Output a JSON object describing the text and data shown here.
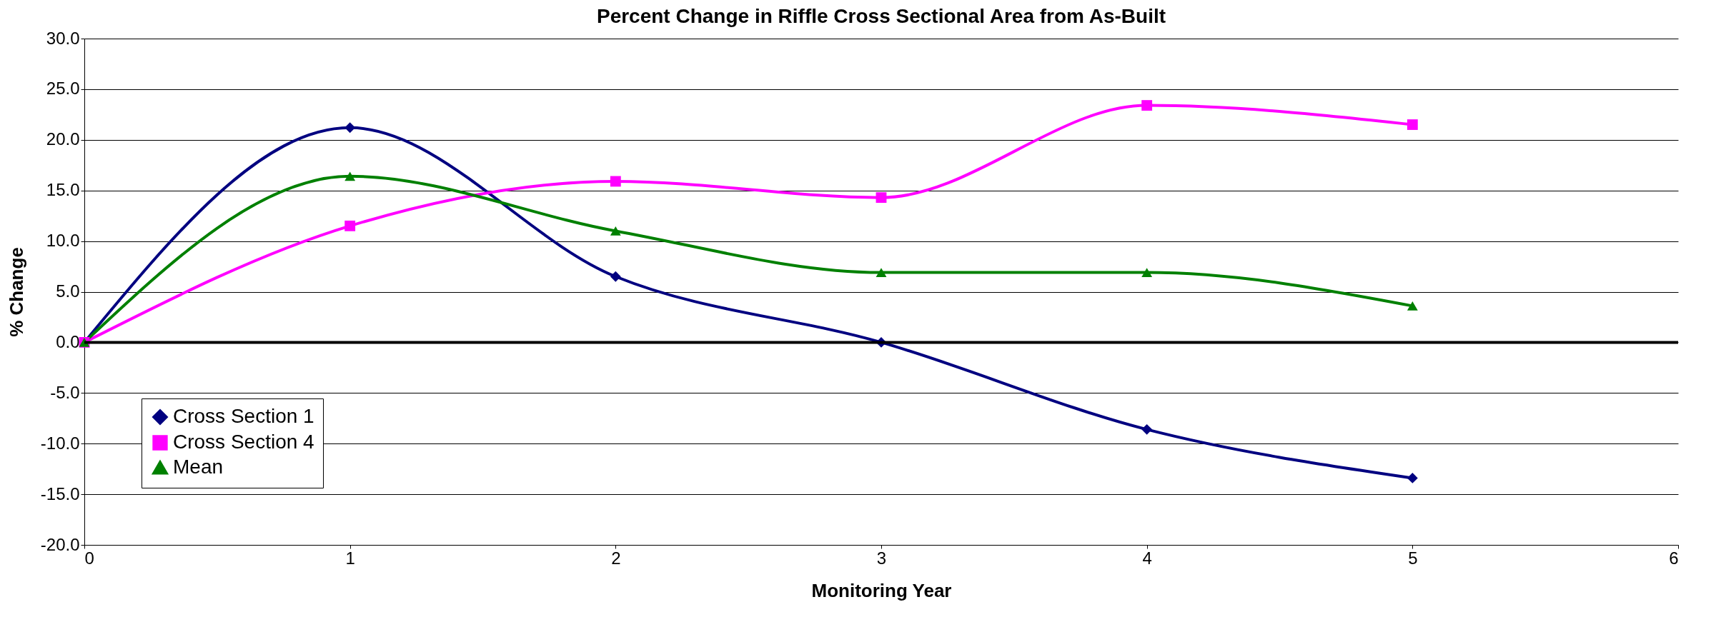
{
  "chart_data": {
    "type": "line",
    "title": "Percent Change in Riffle Cross Sectional Area from As-Built",
    "xlabel": "Monitoring Year",
    "ylabel": "% Change",
    "x": [
      0,
      1,
      2,
      3,
      4,
      5
    ],
    "xlim": [
      0,
      6
    ],
    "xticks": [
      0,
      1,
      2,
      3,
      4,
      5,
      6
    ],
    "ylim": [
      -20,
      30
    ],
    "yticks": [
      {
        "value": -20,
        "label": "-20.0"
      },
      {
        "value": -15,
        "label": "-15.0"
      },
      {
        "value": -10,
        "label": "-10.0"
      },
      {
        "value": -5,
        "label": "-5.0"
      },
      {
        "value": 0,
        "label": "0.0"
      },
      {
        "value": 5,
        "label": "5.0"
      },
      {
        "value": 10,
        "label": "10.0"
      },
      {
        "value": 15,
        "label": "15.0"
      },
      {
        "value": 20,
        "label": "20.0"
      },
      {
        "value": 25,
        "label": "25.0"
      },
      {
        "value": 30,
        "label": "30.0"
      }
    ],
    "grid": "y",
    "legend": "bottom left",
    "series": [
      {
        "name": "Cross Section 1",
        "color": "#000080",
        "marker": "diamond",
        "values": [
          0,
          21.2,
          6.5,
          0,
          -8.6,
          -13.4
        ]
      },
      {
        "name": "Cross Section 4",
        "color": "#ff00ff",
        "marker": "square",
        "values": [
          0,
          11.5,
          15.9,
          14.3,
          23.4,
          21.5
        ]
      },
      {
        "name": "Mean",
        "color": "#008000",
        "marker": "triangle",
        "values": [
          0,
          16.4,
          11.0,
          6.9,
          6.9,
          3.6
        ]
      }
    ],
    "ref_lines": [
      {
        "axis": "y",
        "value": 0,
        "color": "#000000"
      }
    ]
  }
}
